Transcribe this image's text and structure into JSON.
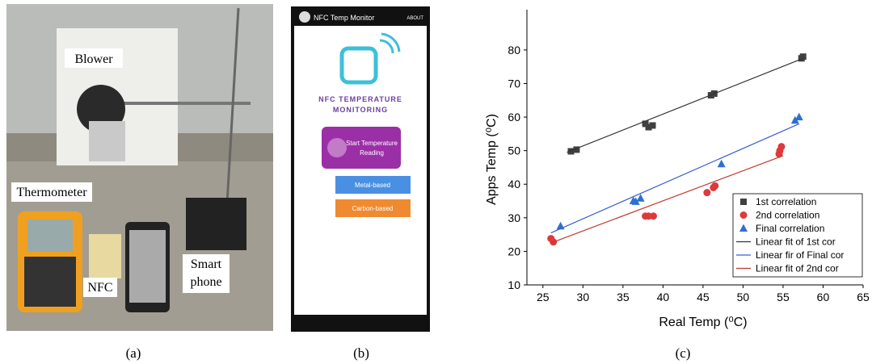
{
  "photo": {
    "labels": {
      "blower": "Blower",
      "thermometer": "Thermometer",
      "nfc": "NFC",
      "smart_phone": [
        "Smart",
        "phone"
      ]
    }
  },
  "app": {
    "title": "NFC Temp Monitor",
    "about": "ABOUT",
    "heading": [
      "NFC TEMPERATURE",
      "MONITORING"
    ],
    "button": [
      "Start Temperature",
      "Reading"
    ],
    "options": [
      "Metal-based",
      "Carbon-based"
    ]
  },
  "captions": [
    "(a)",
    "(b)",
    "(c)"
  ],
  "chart_data": {
    "type": "scatter",
    "x_label": "Real Temp (⁰C)",
    "y_label": "Apps Temp (⁰C)",
    "xlim": [
      23,
      65
    ],
    "ylim": [
      10,
      92
    ],
    "xticks": [
      25,
      30,
      35,
      40,
      45,
      50,
      55,
      60,
      65
    ],
    "yticks": [
      10,
      20,
      30,
      40,
      50,
      60,
      70,
      80
    ],
    "series": [
      {
        "name": "1st correlation",
        "color": "#404040",
        "marker": "square",
        "x": [
          28.5,
          29.2,
          37.8,
          38.2,
          38.7,
          46,
          46.4,
          57.3,
          57.5
        ],
        "values": [
          49.8,
          50.3,
          58,
          57,
          57.5,
          66.5,
          67,
          77.5,
          78
        ]
      },
      {
        "name": "2nd correlation",
        "color": "#e0393b",
        "marker": "circle",
        "x": [
          26,
          26.3,
          37.8,
          38.2,
          38.8,
          45.5,
          46.3,
          46.5,
          54.5,
          54.6,
          54.8
        ],
        "values": [
          23.8,
          22.8,
          30.5,
          30.5,
          30.5,
          37.5,
          39,
          39.5,
          49,
          50,
          51.2
        ]
      },
      {
        "name": "Final correlation",
        "color": "#2f6fd0",
        "marker": "triangle",
        "x": [
          27.2,
          36.3,
          36.6,
          37.2,
          47.3,
          56.5,
          57
        ],
        "values": [
          27.5,
          35,
          34.8,
          35.8,
          46,
          59,
          60
        ]
      },
      {
        "name": "Linear fit of 1st cor",
        "color": "#333333",
        "marker": "line",
        "x": [
          28,
          57.5
        ],
        "values": [
          49.5,
          77.5
        ]
      },
      {
        "name": "Linear fir of Final cor",
        "color": "#3a5fcd",
        "marker": "line",
        "x": [
          26,
          57
        ],
        "values": [
          25.5,
          58
        ]
      },
      {
        "name": "Linear fit of 2nd cor",
        "color": "#c0392b",
        "marker": "line",
        "x": [
          26,
          55
        ],
        "values": [
          22.5,
          48.5
        ]
      }
    ]
  }
}
